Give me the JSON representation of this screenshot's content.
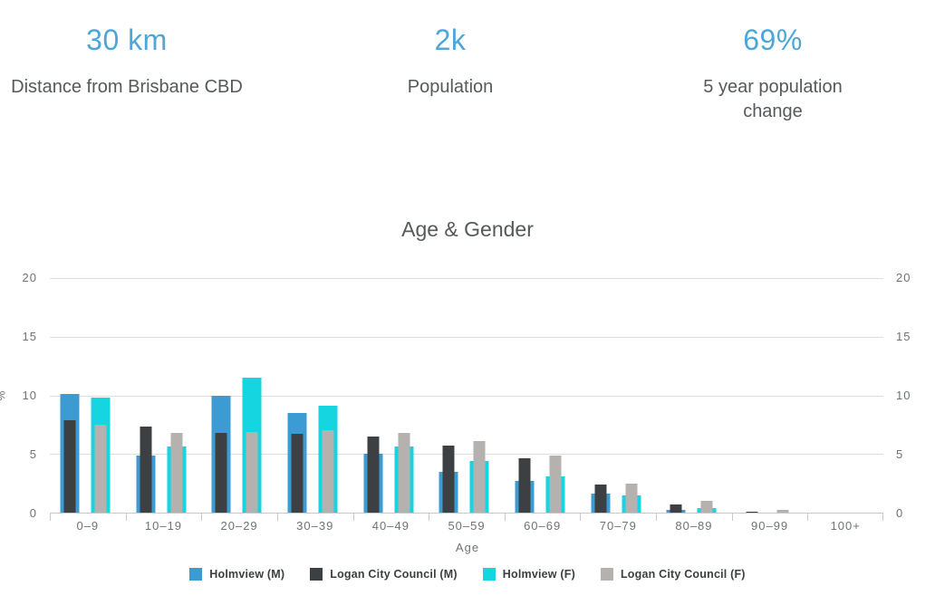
{
  "stats": {
    "items": [
      {
        "value": "30 km",
        "label": "Distance from Brisbane CBD"
      },
      {
        "value": "2k",
        "label": "Population"
      },
      {
        "value": "69%",
        "label": "5 year population change"
      }
    ],
    "accent_color": "#4da6d8"
  },
  "chart_data": {
    "type": "bar",
    "title": "Age & Gender",
    "xlabel": "Age",
    "ylabel": "%",
    "ylim": [
      0,
      20
    ],
    "yticks": [
      0,
      5,
      10,
      15,
      20
    ],
    "grid": true,
    "legend_position": "bottom",
    "bar_style": "overlapped-pairs (wide Holmview bar behind, narrow Logan bar on top)",
    "categories": [
      "0–9",
      "10–19",
      "20–29",
      "30–39",
      "40–49",
      "50–59",
      "60–69",
      "70–79",
      "80–89",
      "90–99",
      "100+"
    ],
    "series": [
      {
        "name": "Holmview (M)",
        "color": "#3d9bd4",
        "role": "wide",
        "cluster": 0,
        "values": [
          10.1,
          4.9,
          10.0,
          8.5,
          5.0,
          3.5,
          2.7,
          1.6,
          0.2,
          0,
          0
        ]
      },
      {
        "name": "Logan City Council (M)",
        "color": "#3c4043",
        "role": "narrow",
        "cluster": 0,
        "values": [
          7.9,
          7.3,
          6.8,
          6.7,
          6.5,
          5.7,
          4.6,
          2.4,
          0.7,
          0.1,
          0
        ]
      },
      {
        "name": "Holmview (F)",
        "color": "#14d5e0",
        "role": "wide",
        "cluster": 1,
        "values": [
          9.8,
          5.6,
          11.5,
          9.1,
          5.6,
          4.4,
          3.1,
          1.5,
          0.4,
          0,
          0
        ]
      },
      {
        "name": "Logan City Council (F)",
        "color": "#b4b1af",
        "role": "narrow",
        "cluster": 1,
        "values": [
          7.5,
          6.8,
          6.9,
          7.0,
          6.8,
          6.1,
          4.9,
          2.5,
          1.0,
          0.25,
          0
        ]
      }
    ],
    "axis_colors": {
      "grid": "#dbdedf",
      "baseline": "#c6c9cb",
      "tick_text": "#6e7377"
    }
  }
}
